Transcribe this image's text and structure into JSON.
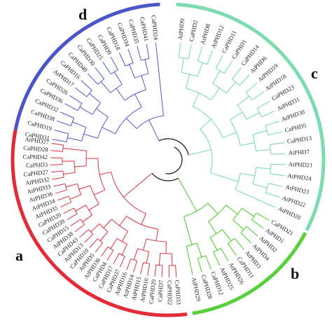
{
  "clades": [
    {
      "id": "a",
      "label": "a",
      "color": "#e0303d",
      "arc_color": "#e32a36"
    },
    {
      "id": "b",
      "label": "b",
      "color": "#46cc20",
      "arc_color": "#58d03a"
    },
    {
      "id": "c",
      "label": "c",
      "color": "#72d8b0",
      "arc_color": "#7cdcae"
    },
    {
      "id": "d",
      "label": "d",
      "color": "#5058c8",
      "arc_color": "#4b55c8"
    }
  ],
  "tree": {
    "d": [
      "CaPHD31",
      "CaPHD19",
      "CaPHD38",
      "CaPHD32",
      "CaPHD36",
      "CaPHD26",
      "AtPHD17",
      "CaPHD16",
      "CaPHD40",
      "CaPHD30",
      "CaPHD25",
      "CaPHD9",
      "CaPHD18",
      "CaPHD34",
      "CaPHD35",
      "CaPHD41",
      "CaPHD24"
    ],
    "c": [
      "AtPHD9",
      "CaPHD2",
      "AtPHD8",
      "AtPHD12",
      "CaPHD11",
      "CaPHD1",
      "CaPHD14",
      "AtPHD6",
      "AtPHD19",
      "AtPHD18",
      "CaPHD23",
      "AtPHD31",
      "AtPHD30",
      "CaPHD5",
      "CaPHD13",
      "AtPHD7",
      "AtPHD21",
      "AtPHD24",
      "AtPHD23",
      "AtPHD22",
      "AtPHD20"
    ],
    "b": [
      "CaPHD21",
      "AtPHD1",
      "AtPHD2",
      "AtPHD4",
      "AtPHD3",
      "CaPHD11",
      "AtPHD26",
      "AtPHD25",
      "CaPHD12",
      "CaPHD28",
      "AtPHD29"
    ],
    "a": [
      "CaPHD33",
      "CaPHD22",
      "CaPHD7",
      "CaPHD29",
      "AtPHD10",
      "AtPHD15",
      "AtPHD14",
      "AtPHD16",
      "CaPHD37",
      "CaPHD17",
      "CaPHD4",
      "AtPHD36",
      "AtPHD5",
      "CaPHD10",
      "AtPHD13",
      "CaPHD43",
      "AtPHD38",
      "CaPHD15",
      "CaPHD39",
      "CaPHD20",
      "AtPHD35",
      "AtPHD34",
      "AtPHD36",
      "AtPHD33",
      "AtPHD32",
      "CaPHD27",
      "CaPHD3",
      "CaPHD42",
      "CaPHD28",
      "AtPHD27"
    ]
  }
}
